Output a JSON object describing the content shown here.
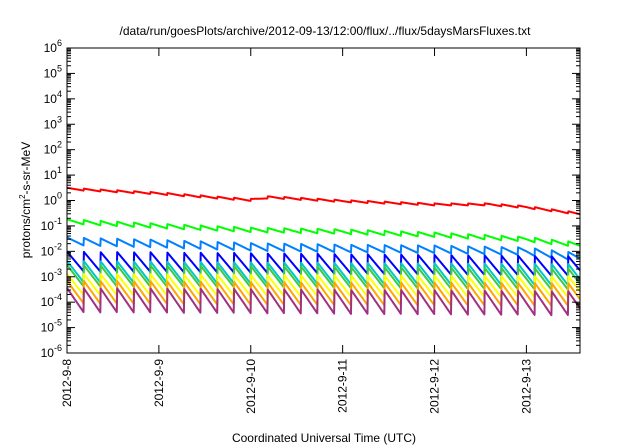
{
  "chart_data": {
    "type": "line",
    "title": "/data/run/goesPlots/archive/2012-09-13/12:00/flux/../flux/5daysMarsFluxes.txt",
    "xlabel": "Coordinated Universal Time (UTC)",
    "ylabel": {
      "prefix": "protons/cm",
      "sup": "2",
      "suffix": "-s-sr-MeV"
    },
    "yscale": "log",
    "ylim": [
      1e-06,
      1000000.0
    ],
    "yticks": [
      {
        "base": "10",
        "exp": "-6"
      },
      {
        "base": "10",
        "exp": "-5"
      },
      {
        "base": "10",
        "exp": "-4"
      },
      {
        "base": "10",
        "exp": "-3"
      },
      {
        "base": "10",
        "exp": "-2"
      },
      {
        "base": "10",
        "exp": "-1"
      },
      {
        "base": "10",
        "exp": "0"
      },
      {
        "base": "10",
        "exp": "1"
      },
      {
        "base": "10",
        "exp": "2"
      },
      {
        "base": "10",
        "exp": "3"
      },
      {
        "base": "10",
        "exp": "4"
      },
      {
        "base": "10",
        "exp": "5"
      },
      {
        "base": "10",
        "exp": "6"
      }
    ],
    "xlim": [
      "2012-09-08",
      "2012-09-13T14:00"
    ],
    "xticks": [
      "2012-9-8",
      "2012-9-9",
      "2012-9-10",
      "2012-9-11",
      "2012-9-12",
      "2012-9-13"
    ],
    "grid": false,
    "legend": "none",
    "sawtooth_cycles_per_day": 5.5,
    "series": [
      {
        "color": "#ff0000",
        "knots": [
          [
            0,
            2.9
          ],
          [
            1,
            1.9
          ],
          [
            2,
            1.05
          ],
          [
            2.2,
            1.35
          ],
          [
            3,
            0.95
          ],
          [
            4,
            0.7
          ],
          [
            4.6,
            0.7
          ],
          [
            5,
            0.55
          ],
          [
            5.58,
            0.3
          ]
        ],
        "sawtooth_ratio": 1.2
      },
      {
        "color": "#00ff00",
        "knots": [
          [
            0,
            0.15
          ],
          [
            1,
            0.1
          ],
          [
            2,
            0.07
          ],
          [
            3,
            0.06
          ],
          [
            4,
            0.045
          ],
          [
            5,
            0.03
          ],
          [
            5.58,
            0.018
          ]
        ],
        "sawtooth_ratio": 1.5
      },
      {
        "color": "#0080ff",
        "knots": [
          [
            0,
            0.025
          ],
          [
            1,
            0.02
          ],
          [
            2,
            0.015
          ],
          [
            3,
            0.013
          ],
          [
            4,
            0.012
          ],
          [
            5,
            0.01
          ],
          [
            5.58,
            0.006
          ]
        ],
        "sawtooth_ratio": 2.0
      },
      {
        "color": "#0000ff",
        "knots": [
          [
            0,
            0.004
          ],
          [
            2,
            0.0035
          ],
          [
            5.58,
            0.0026
          ]
        ],
        "sawtooth_ratio": 6
      },
      {
        "color": "#00c8c8",
        "knots": [
          [
            0,
            0.0016
          ],
          [
            2,
            0.0014
          ],
          [
            5.58,
            0.0012
          ]
        ],
        "sawtooth_ratio": 7
      },
      {
        "color": "#40c840",
        "knots": [
          [
            0,
            0.0011
          ],
          [
            2,
            0.001
          ],
          [
            5.58,
            0.0008
          ]
        ],
        "sawtooth_ratio": 7
      },
      {
        "color": "#ffff00",
        "knots": [
          [
            0,
            0.0005
          ],
          [
            2,
            0.00045
          ],
          [
            5.58,
            0.0004
          ]
        ],
        "sawtooth_ratio": 7
      },
      {
        "color": "#ffa500",
        "knots": [
          [
            0,
            0.00025
          ],
          [
            2,
            0.00022
          ],
          [
            5.58,
            0.0002
          ]
        ],
        "sawtooth_ratio": 8
      },
      {
        "color": "#a03080",
        "knots": [
          [
            0,
            0.00012
          ],
          [
            2,
            0.00011
          ],
          [
            5.58,
            9e-05
          ]
        ],
        "sawtooth_ratio": 9
      }
    ]
  }
}
